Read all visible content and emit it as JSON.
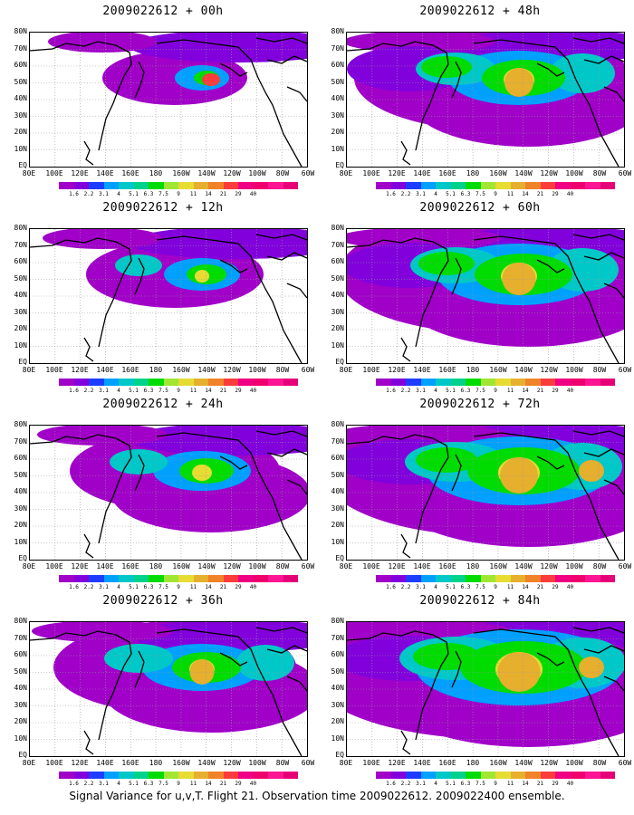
{
  "caption": "Signal Variance for u,v,T. Flight 21. Observation time 2009022612. 2009022400 ensemble.",
  "lat_labels": [
    "80N",
    "70N",
    "60N",
    "50N",
    "40N",
    "30N",
    "20N",
    "10N",
    "EQ"
  ],
  "lon_labels": [
    "80E",
    "100E",
    "120E",
    "140E",
    "160E",
    "180",
    "160W",
    "140W",
    "120W",
    "100W",
    "80W",
    "60W"
  ],
  "colorbar": {
    "labels": [
      "1.6",
      "2.2",
      "3.1",
      "4",
      "5.1",
      "6.3",
      "7.5",
      "9",
      "11",
      "14",
      "21",
      "29",
      "40"
    ],
    "colors": [
      "#a000c8",
      "#8200dc",
      "#1e3cff",
      "#00a0ff",
      "#00c8c8",
      "#00d28c",
      "#00dc00",
      "#a0e632",
      "#e6dc32",
      "#e6af2d",
      "#f08228",
      "#fa3c3c",
      "#f00082"
    ]
  },
  "panels": [
    {
      "title": "2009022612 + 00h",
      "level": 0
    },
    {
      "title": "2009022612 + 48h",
      "level": 4
    },
    {
      "title": "2009022612 + 12h",
      "level": 1
    },
    {
      "title": "2009022612 + 60h",
      "level": 5
    },
    {
      "title": "2009022612 + 24h",
      "level": 2
    },
    {
      "title": "2009022612 + 72h",
      "level": 6
    },
    {
      "title": "2009022612 + 36h",
      "level": 3
    },
    {
      "title": "2009022612 + 84h",
      "level": 7
    }
  ]
}
